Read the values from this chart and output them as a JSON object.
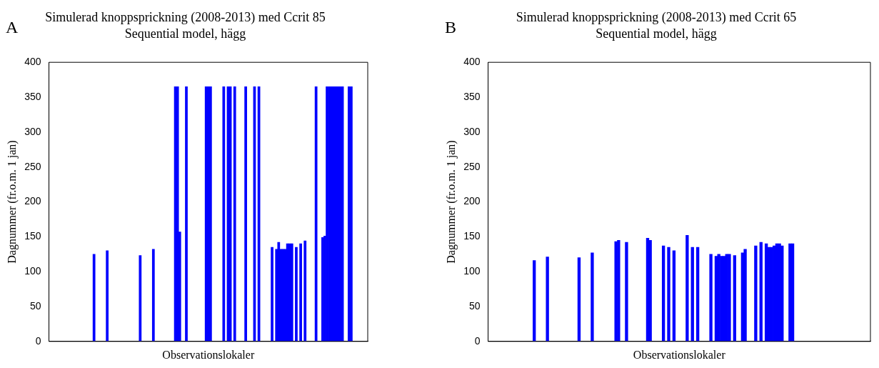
{
  "chart_data": [
    {
      "type": "bar",
      "title": "Simulerad knoppsprickning (2008-2013) med Ccrit 85",
      "subtitle": "Sequential model, hägg",
      "xlabel": "Observationslokaler",
      "ylabel": "Dagnummer (fr.o.m. 1 jan)",
      "annotations": [
        "A"
      ],
      "color": "#0000ff",
      "categories": [
        null,
        null,
        null,
        null,
        null,
        null,
        null,
        null,
        null,
        null,
        null,
        null,
        null,
        null,
        null,
        null,
        null,
        null,
        null,
        null,
        null,
        null,
        null,
        null,
        null,
        null,
        null,
        null,
        null,
        null,
        null,
        null,
        null,
        null,
        null,
        null,
        null,
        null,
        null,
        null,
        null,
        null,
        null,
        null,
        null,
        null,
        null,
        null,
        null,
        null,
        null,
        null,
        null,
        null,
        null,
        null,
        null,
        null,
        null,
        null,
        null,
        null,
        null,
        null,
        null,
        null,
        null,
        null,
        null,
        null,
        null,
        null,
        null,
        null,
        null,
        null,
        null,
        null,
        null,
        null,
        null,
        null,
        null,
        null,
        null,
        null,
        null,
        null,
        null,
        null,
        null,
        null,
        null,
        null,
        null,
        null,
        null,
        null,
        null,
        null,
        null,
        null,
        null,
        null,
        null,
        null,
        null,
        null,
        null,
        null,
        null,
        null,
        null,
        null,
        null,
        null,
        null,
        null,
        null,
        null,
        null,
        null,
        null,
        null,
        null,
        null,
        null,
        null,
        null,
        null,
        null,
        null,
        null,
        null,
        null,
        null,
        null,
        null,
        null,
        null,
        null,
        null,
        null,
        null,
        null
      ],
      "values": [
        null,
        null,
        null,
        null,
        null,
        null,
        null,
        null,
        null,
        null,
        null,
        null,
        null,
        null,
        null,
        null,
        null,
        null,
        null,
        null,
        125,
        null,
        null,
        null,
        null,
        null,
        130,
        null,
        null,
        null,
        null,
        null,
        null,
        null,
        null,
        null,
        null,
        null,
        null,
        null,
        null,
        123,
        null,
        null,
        null,
        null,
        null,
        132,
        null,
        null,
        null,
        null,
        null,
        null,
        null,
        null,
        null,
        365,
        365,
        157,
        null,
        null,
        365,
        null,
        null,
        null,
        null,
        null,
        null,
        null,
        null,
        365,
        365,
        365,
        null,
        null,
        null,
        null,
        null,
        365,
        null,
        365,
        365,
        null,
        365,
        null,
        null,
        null,
        null,
        365,
        null,
        null,
        null,
        365,
        null,
        365,
        null,
        null,
        null,
        null,
        null,
        135,
        null,
        132,
        142,
        132,
        132,
        132,
        140,
        140,
        140,
        null,
        135,
        null,
        140,
        null,
        144,
        null,
        null,
        null,
        null,
        365,
        null,
        null,
        149,
        151,
        365,
        365,
        365,
        365,
        365,
        365,
        365,
        365,
        null,
        null,
        365,
        365,
        null,
        null,
        null,
        null,
        null,
        null,
        null
      ],
      "ylim": [
        0,
        400
      ],
      "yticks": [
        0,
        50,
        100,
        150,
        200,
        250,
        300,
        350,
        400
      ],
      "tick_labels": "y"
    },
    {
      "type": "bar",
      "title": "Simulerad knoppsprickning (2008-2013) med Ccrit 65",
      "subtitle": "Sequential model, hägg",
      "xlabel": "Observationslokaler",
      "ylabel": "Dagnummer (fr.o.m. 1 jan)",
      "annotations": [
        "B"
      ],
      "color": "#0000ff",
      "categories": [
        null,
        null,
        null,
        null,
        null,
        null,
        null,
        null,
        null,
        null,
        null,
        null,
        null,
        null,
        null,
        null,
        null,
        null,
        null,
        null,
        null,
        null,
        null,
        null,
        null,
        null,
        null,
        null,
        null,
        null,
        null,
        null,
        null,
        null,
        null,
        null,
        null,
        null,
        null,
        null,
        null,
        null,
        null,
        null,
        null,
        null,
        null,
        null,
        null,
        null,
        null,
        null,
        null,
        null,
        null,
        null,
        null,
        null,
        null,
        null,
        null,
        null,
        null,
        null,
        null,
        null,
        null,
        null,
        null,
        null,
        null,
        null,
        null,
        null,
        null,
        null,
        null,
        null,
        null,
        null,
        null,
        null,
        null,
        null,
        null,
        null,
        null,
        null,
        null,
        null,
        null,
        null,
        null,
        null,
        null,
        null,
        null,
        null,
        null,
        null,
        null,
        null,
        null,
        null,
        null,
        null,
        null,
        null,
        null,
        null,
        null,
        null,
        null,
        null,
        null,
        null,
        null,
        null,
        null,
        null,
        null,
        null,
        null,
        null,
        null,
        null,
        null,
        null,
        null,
        null,
        null,
        null,
        null,
        null,
        null,
        null,
        null,
        null,
        null,
        null,
        null,
        null,
        null,
        null,
        null
      ],
      "values": [
        null,
        null,
        null,
        null,
        null,
        null,
        null,
        null,
        null,
        null,
        null,
        null,
        null,
        null,
        null,
        null,
        null,
        116,
        null,
        null,
        null,
        null,
        121,
        null,
        null,
        null,
        null,
        null,
        null,
        null,
        null,
        null,
        null,
        null,
        120,
        null,
        null,
        null,
        null,
        127,
        null,
        null,
        null,
        null,
        null,
        null,
        null,
        null,
        143,
        145,
        null,
        null,
        142,
        null,
        null,
        null,
        null,
        null,
        null,
        null,
        148,
        145,
        null,
        null,
        null,
        null,
        137,
        null,
        135,
        null,
        130,
        null,
        null,
        null,
        null,
        152,
        null,
        135,
        null,
        135,
        null,
        null,
        null,
        null,
        125,
        null,
        122,
        125,
        122,
        122,
        125,
        125,
        null,
        123,
        null,
        null,
        127,
        132,
        null,
        null,
        null,
        137,
        null,
        142,
        null,
        140,
        135,
        135,
        137,
        140,
        140,
        137,
        null,
        null,
        140,
        140,
        null,
        null,
        null,
        null,
        null,
        null,
        null,
        null,
        null,
        null,
        null,
        null,
        null,
        null,
        null,
        null,
        null,
        null,
        null,
        null,
        null,
        null,
        null,
        null,
        null,
        null,
        null,
        null,
        null
      ],
      "ylim": [
        0,
        400
      ],
      "yticks": [
        0,
        50,
        100,
        150,
        200,
        250,
        300,
        350,
        400
      ],
      "tick_labels": "y"
    }
  ]
}
